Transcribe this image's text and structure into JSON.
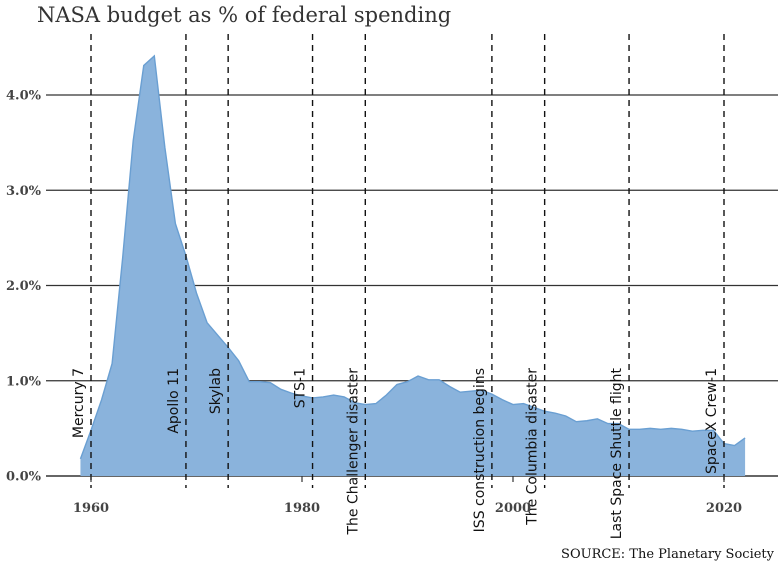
{
  "chart_data": {
    "type": "area",
    "title": "NASA budget as % of federal spending",
    "source": "SOURCE: The Planetary Society",
    "xlabel": "",
    "ylabel": "",
    "xlim": [
      1956,
      2026
    ],
    "ylim": [
      0,
      4.6
    ],
    "x_ticks": [
      1960,
      1980,
      2000,
      2020
    ],
    "y_ticks": [
      {
        "value": 0.0,
        "label": "0.0%"
      },
      {
        "value": 1.0,
        "label": "1.0%"
      },
      {
        "value": 2.0,
        "label": "2.0%"
      },
      {
        "value": 3.0,
        "label": "3.0%"
      },
      {
        "value": 4.0,
        "label": "4.0%"
      }
    ],
    "grid": true,
    "color": "#6a9fd2",
    "fill_color": "#8ab3dc",
    "series": [
      {
        "x": [
          1959,
          1960,
          1961,
          1962,
          1963,
          1964,
          1965,
          1966,
          1967,
          1968,
          1969,
          1970,
          1971,
          1972,
          1973,
          1974,
          1975,
          1976,
          1977,
          1978,
          1979,
          1980,
          1981,
          1982,
          1983,
          1984,
          1985,
          1986,
          1987,
          1988,
          1989,
          1990,
          1991,
          1992,
          1993,
          1994,
          1995,
          1996,
          1997,
          1998,
          1999,
          2000,
          2001,
          2002,
          2003,
          2004,
          2005,
          2006,
          2007,
          2008,
          2009,
          2010,
          2011,
          2012,
          2013,
          2014,
          2015,
          2016,
          2017,
          2018,
          2019,
          2020,
          2021,
          2022
        ],
        "y": [
          0.18,
          0.48,
          0.8,
          1.18,
          2.29,
          3.52,
          4.31,
          4.41,
          3.45,
          2.65,
          2.31,
          1.92,
          1.61,
          1.48,
          1.35,
          1.21,
          0.99,
          0.99,
          0.98,
          0.91,
          0.87,
          0.84,
          0.82,
          0.83,
          0.85,
          0.83,
          0.77,
          0.75,
          0.76,
          0.85,
          0.96,
          0.99,
          1.05,
          1.01,
          1.01,
          0.94,
          0.88,
          0.89,
          0.9,
          0.86,
          0.8,
          0.75,
          0.76,
          0.72,
          0.68,
          0.66,
          0.63,
          0.57,
          0.58,
          0.6,
          0.55,
          0.55,
          0.49,
          0.49,
          0.5,
          0.49,
          0.5,
          0.49,
          0.47,
          0.48,
          0.48,
          0.34,
          0.32,
          0.4
        ]
      }
    ],
    "events": [
      {
        "year": 1960,
        "label": "Mercury 7"
      },
      {
        "year": 1969,
        "label": "Apollo 11"
      },
      {
        "year": 1973,
        "label": "Skylab"
      },
      {
        "year": 1981,
        "label": "STS-1"
      },
      {
        "year": 1986,
        "label": "The Challenger disaster"
      },
      {
        "year": 1998,
        "label": "ISS construction begins"
      },
      {
        "year": 2003,
        "label": "The Columbia disaster"
      },
      {
        "year": 2011,
        "label": "Last Space Shuttle flight"
      },
      {
        "year": 2020,
        "label": "SpaceX Crew-1"
      }
    ]
  }
}
